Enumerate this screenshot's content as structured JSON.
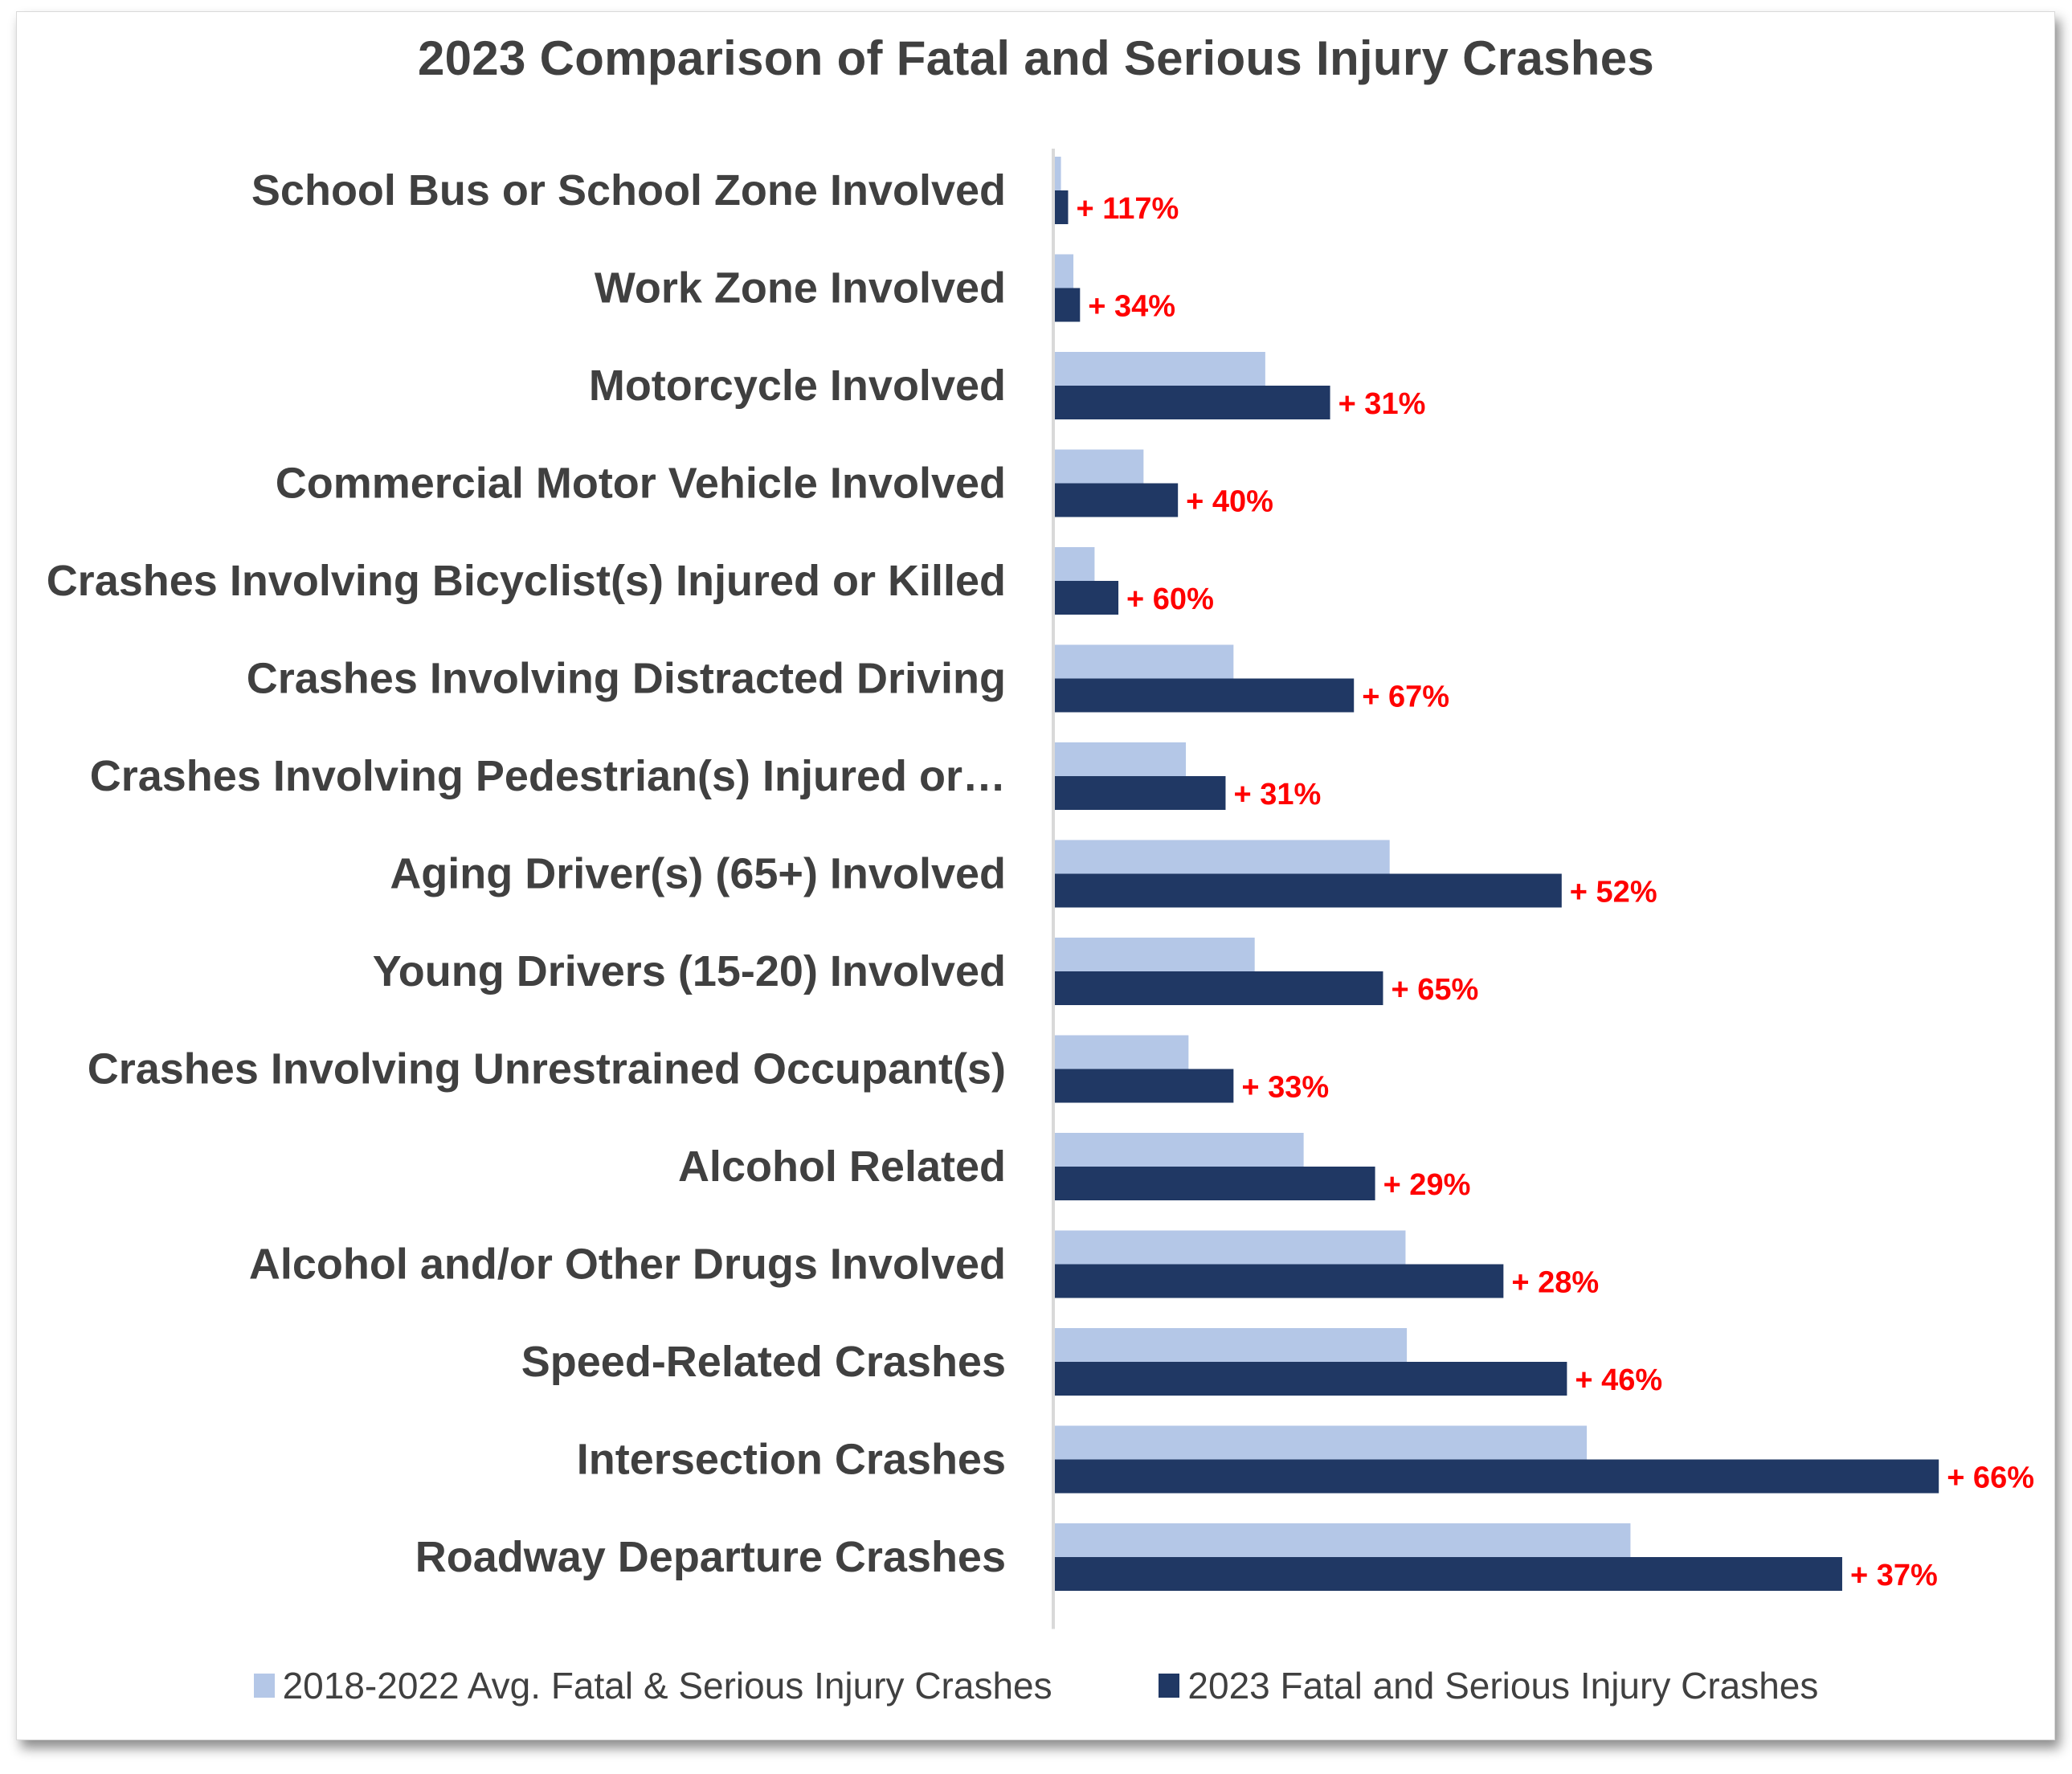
{
  "chart_data": {
    "type": "bar",
    "orientation": "horizontal",
    "title": "2023 Comparison of Fatal and Serious Injury Crashes",
    "xlabel": "",
    "ylabel": "",
    "grid": false,
    "value_axis_labels_shown": false,
    "value_units": "relative (estimated from bar lengths; no axis scale shown)",
    "xlim": [
      0,
      700
    ],
    "legend_position": "bottom",
    "categories": [
      "School Bus or School Zone Involved",
      "Work Zone Involved",
      "Motorcycle Involved",
      "Commercial Motor Vehicle Involved",
      "Crashes Involving Bicyclist(s) Injured or Killed",
      "Crashes Involving Distracted Driving",
      "Crashes Involving Pedestrian(s) Injured or…",
      "Aging Driver(s) (65+) Involved",
      "Young Drivers (15-20) Involved ",
      "Crashes Involving Unrestrained Occupant(s)",
      "Alcohol Related",
      "Alcohol and/or Other Drugs Involved",
      "Speed-Related Crashes",
      "Intersection Crashes",
      "Roadway Departure Crashes"
    ],
    "series": [
      {
        "name": "2018-2022 Avg. Fatal & Serious Injury Crashes",
        "color": "#b4c7e7",
        "values": [
          4.6,
          14,
          159,
          67,
          30,
          135,
          99,
          253,
          151,
          101,
          188,
          265,
          266,
          402,
          435
        ]
      },
      {
        "name": "2023 Fatal and Serious Injury Crashes",
        "color": "#203864",
        "values": [
          10,
          19,
          208,
          93,
          48,
          226,
          129,
          383,
          248,
          135,
          242,
          339,
          387,
          668,
          595
        ]
      }
    ],
    "data_labels": [
      "+ 117%",
      "+ 34%",
      "+ 31%",
      "+ 40%",
      "+ 60%",
      "+ 67%",
      "+ 31%",
      "+ 52%",
      "+ 65%",
      "+ 33%",
      "+ 29%",
      "+ 28%",
      "+ 46%",
      "+ 66%",
      "+ 37%"
    ],
    "data_label_color": "#ff0000"
  },
  "legend": {
    "items": [
      {
        "label": "2018-2022 Avg. Fatal & Serious Injury Crashes",
        "color": "#b4c7e7"
      },
      {
        "label": "2023 Fatal and Serious Injury Crashes",
        "color": "#203864"
      }
    ]
  }
}
